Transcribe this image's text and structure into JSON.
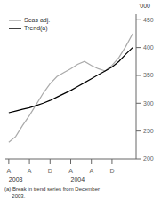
{
  "chart_data": {
    "type": "line",
    "x": [
      0,
      1,
      2,
      3,
      4,
      5,
      6,
      7,
      8,
      9,
      10,
      11,
      12,
      13,
      14,
      15,
      16,
      17,
      18
    ],
    "series": [
      {
        "name": "Seas adj.",
        "color": "#aaaaaa",
        "values": [
          230,
          240,
          260,
          278,
          298,
          318,
          335,
          348,
          355,
          362,
          370,
          375,
          368,
          362,
          358,
          368,
          382,
          402,
          425
        ]
      },
      {
        "name": "Trend(a)",
        "color": "#000000",
        "values": [
          283,
          286,
          289,
          292,
          296,
          300,
          305,
          311,
          317,
          323,
          330,
          337,
          344,
          351,
          358,
          365,
          375,
          388,
          400
        ]
      }
    ],
    "xlim": [
      -0.5,
      18.5
    ],
    "xticks": [
      {
        "value": 0,
        "label": "A"
      },
      {
        "value": 3,
        "label": "A"
      },
      {
        "value": 6,
        "label": "D"
      },
      {
        "value": 9,
        "label": "A"
      },
      {
        "value": 12,
        "label": "A"
      },
      {
        "value": 15,
        "label": "D"
      }
    ],
    "ylim": [
      200,
      460
    ],
    "yticks": [
      200,
      250,
      300,
      350,
      400,
      450
    ],
    "ylabel": "'000",
    "annotations": [
      {
        "text": "2003",
        "x": 0
      },
      {
        "text": "2004",
        "x": 9
      }
    ],
    "footnote": "(a) Break in trend series from December\n     2003.",
    "legend": "upper left",
    "grid": false
  }
}
